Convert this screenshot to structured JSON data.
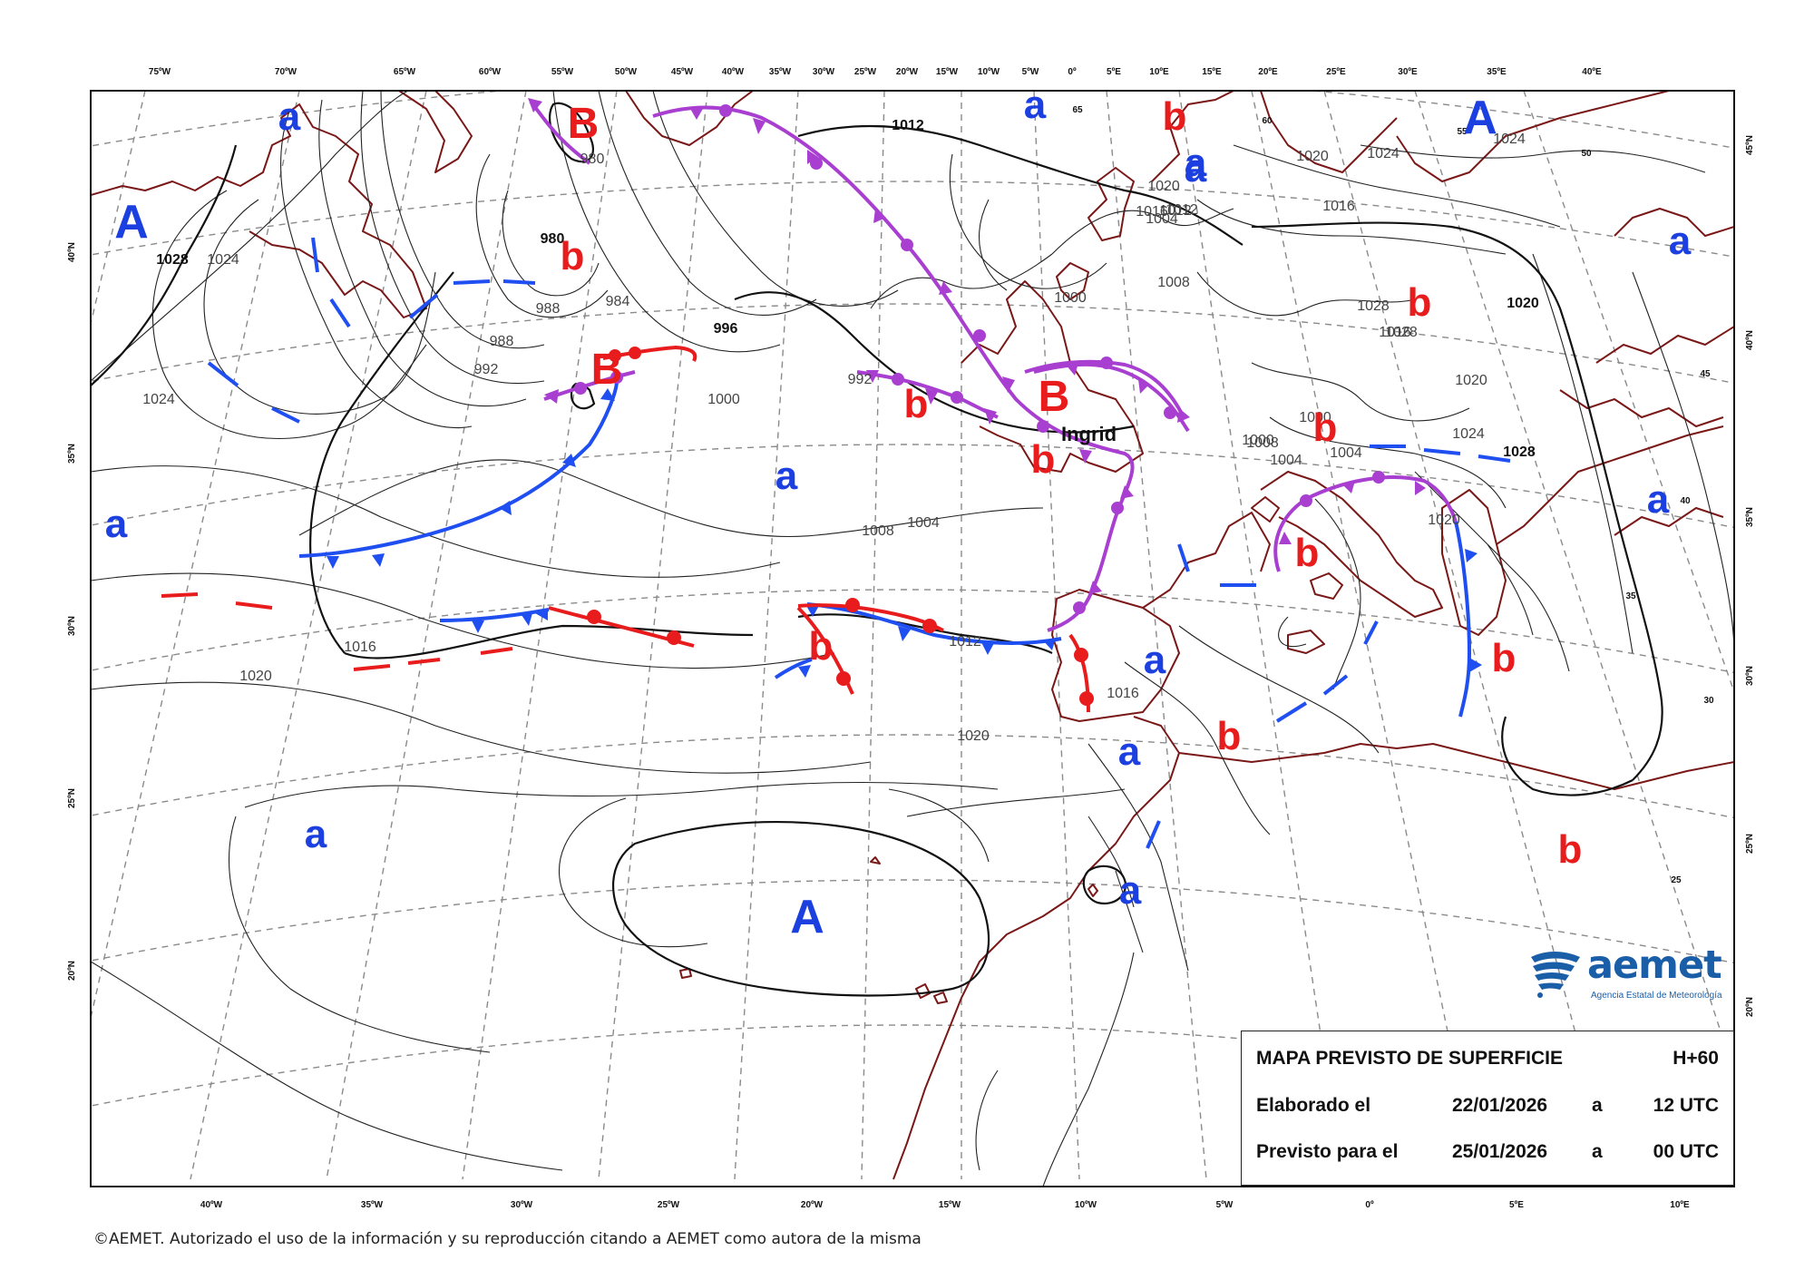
{
  "map": {
    "title": "MAPA PREVISTO DE SUPERFICIE",
    "forecast_hour": "H+60",
    "elaborated_label": "Elaborado el",
    "elaborated_date": "22/01/2026",
    "elaborated_at": "a",
    "elaborated_time": "12 UTC",
    "valid_label": "Previsto para el",
    "valid_date": "25/01/2026",
    "valid_at": "a",
    "valid_time": "00 UTC"
  },
  "credit": "©AEMET. Autorizado el uso de la información y su reproducción citando a AEMET como autora de la misma",
  "logo": {
    "name": "aemet",
    "subtitle": "Agencia Estatal de Meteorología"
  },
  "storm_name": "Ingrid",
  "top_lon_labels": [
    "75ºW",
    "70ºW",
    "65ºW",
    "60ºW",
    "55ºW",
    "50ºW",
    "45ºW",
    "40ºW",
    "35ºW",
    "30ºW",
    "25ºW",
    "20ºW",
    "15ºW",
    "10ºW",
    "5ºW",
    "0º",
    "5ºE",
    "10ºE",
    "15ºE",
    "20ºE",
    "25ºE",
    "30ºE",
    "35ºE",
    "40ºE"
  ],
  "bottom_lon_labels": [
    "40ºW",
    "35ºW",
    "30ºW",
    "25ºW",
    "20ºW",
    "15ºW",
    "10ºW",
    "5ºW",
    "0º",
    "5ºE",
    "10ºE"
  ],
  "left_lat_labels": [
    "40ºN",
    "35ºN",
    "30ºN",
    "25ºN",
    "20ºN"
  ],
  "right_lat_labels": [
    "45ºN",
    "40ºN",
    "35ºN",
    "30ºN",
    "25ºN",
    "20ºN"
  ],
  "inner_lat_labels": [
    "65",
    "60",
    "55",
    "50",
    "45",
    "40",
    "35",
    "30",
    "25"
  ],
  "isobar_labels": [
    "1028",
    "1024",
    "1024",
    "1020",
    "1016",
    "1012",
    "1008",
    "1004",
    "1000",
    "996",
    "992",
    "992",
    "988",
    "988",
    "984",
    "980",
    "980",
    "1012",
    "1008",
    "1004",
    "1000",
    "1000",
    "1004",
    "1008",
    "1012",
    "1016",
    "1020",
    "1024",
    "1016",
    "1020",
    "1024",
    "1028",
    "1028",
    "1020",
    "1020",
    "1028",
    "1020",
    "1016",
    "1024",
    "1000",
    "1004",
    "1012",
    "1016",
    "1020"
  ],
  "pressure_centres": {
    "high": "A",
    "low": "B",
    "relative_high": "a",
    "relative_low": "b"
  },
  "colors": {
    "cold_front": "#1f4ff0",
    "warm_front": "#e81c1c",
    "occluded_front": "#a83fd0",
    "high_marker": "#1c3fe0",
    "low_marker": "#e81c1c",
    "coastline": "#7a1818",
    "isobar": "#111111",
    "graticule": "#888888"
  }
}
